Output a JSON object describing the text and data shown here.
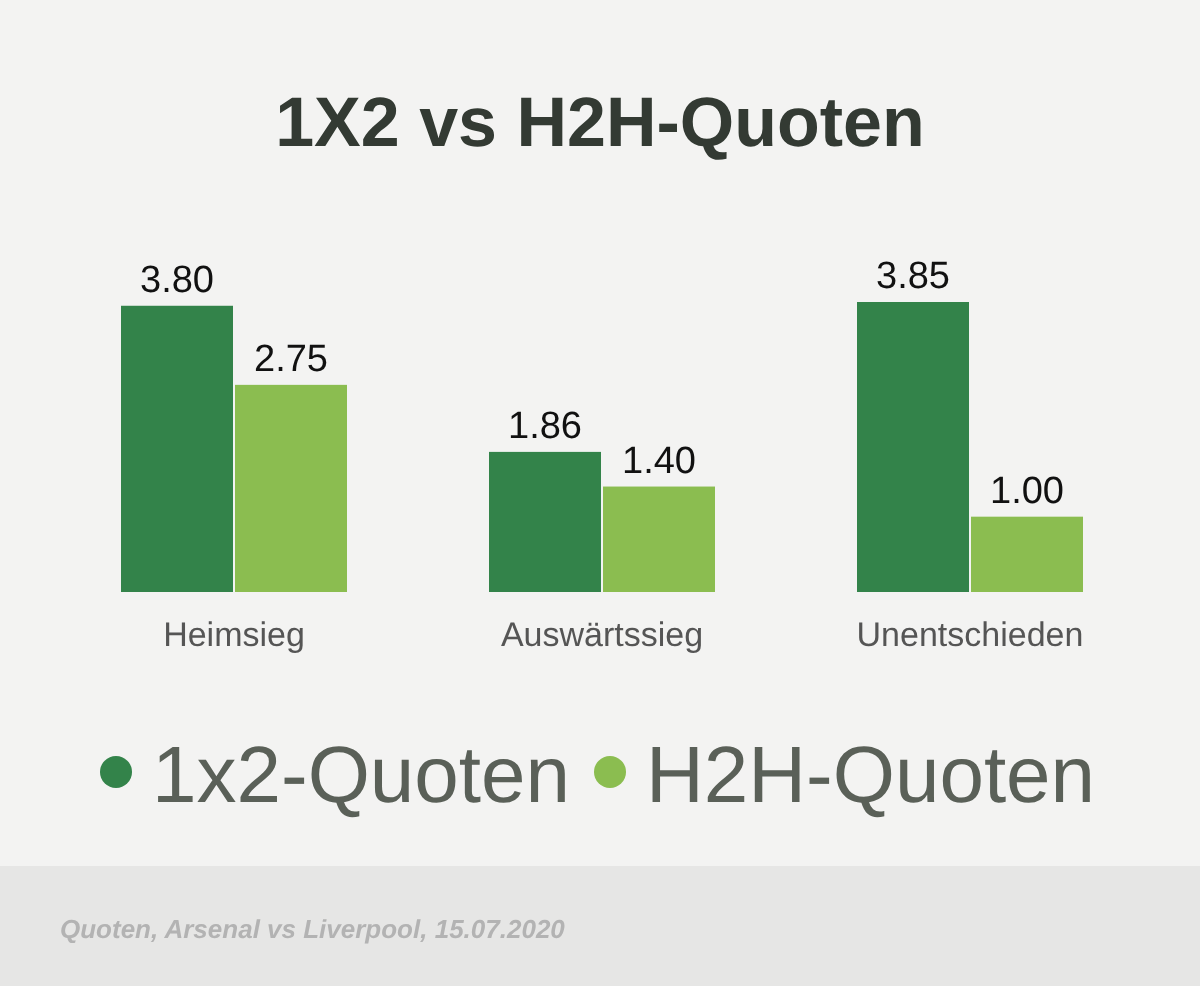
{
  "chart_data": {
    "type": "bar",
    "title": "1X2 vs H2H-Quoten",
    "categories": [
      "Heimsieg",
      "Auswärtssieg",
      "Unentschieden"
    ],
    "series": [
      {
        "name": "1x2-Quoten",
        "color": "#33834a",
        "values": [
          3.8,
          1.86,
          3.85
        ],
        "value_labels": [
          "3.80",
          "1.86",
          "3.85"
        ]
      },
      {
        "name": "H2H-Quoten",
        "color": "#8bbd50",
        "values": [
          2.75,
          1.4,
          1.0
        ],
        "value_labels": [
          "2.75",
          "1.40",
          "1.00"
        ]
      }
    ],
    "legend": "bottom",
    "annotations": [
      "Quoten, Arsenal vs Liverpool, 15.07.2020"
    ]
  }
}
